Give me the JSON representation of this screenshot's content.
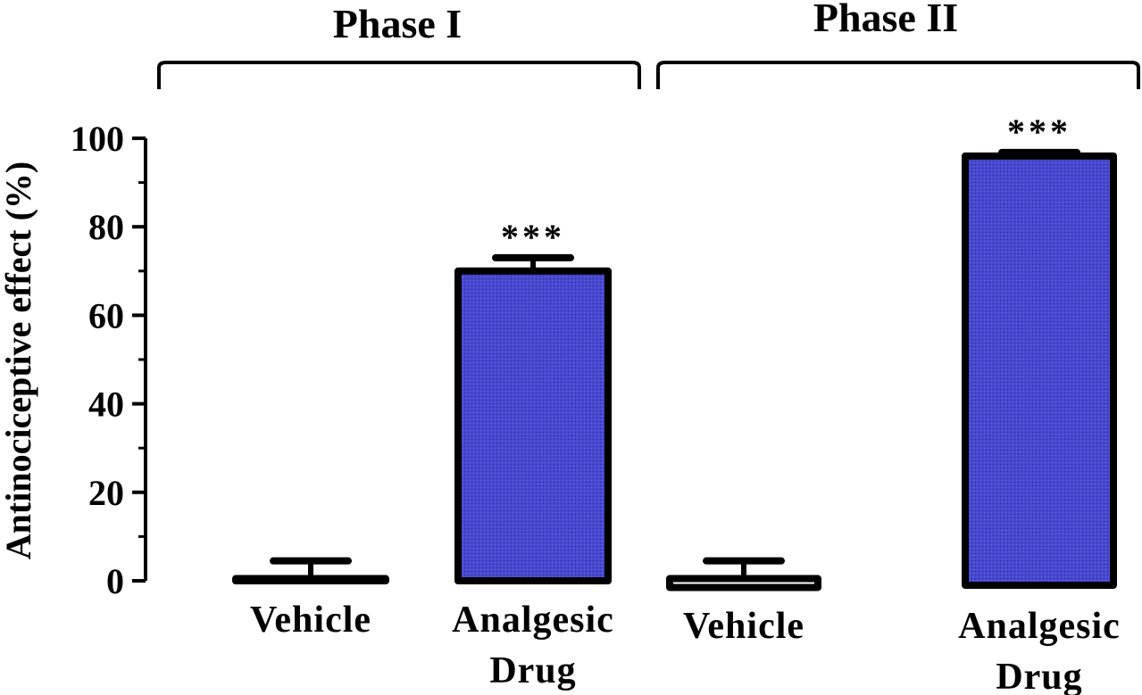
{
  "chart_data": {
    "type": "bar",
    "ylabel": "Antinociceptive effect (%)",
    "ylim": [
      0,
      100
    ],
    "yticks": [
      "0",
      "20",
      "40",
      "60",
      "80",
      "100"
    ],
    "grid": false,
    "legend": "none",
    "colors": {
      "drug": "#4848d0",
      "vehicle": "#ffffff",
      "outline": "#000000"
    },
    "groups": [
      {
        "name": "Phase I",
        "bars": [
          {
            "category": "Vehicle",
            "value": 0.5,
            "error": 4.0,
            "significance": ""
          },
          {
            "category": "Analgesic Drug",
            "value": 70.0,
            "error": 3.0,
            "significance": "***"
          }
        ]
      },
      {
        "name": "Phase II",
        "bars": [
          {
            "category": "Vehicle",
            "value": 0.5,
            "error": 4.0,
            "baseline": -1.5,
            "significance": ""
          },
          {
            "category": "Analgesic Drug",
            "value": 96.0,
            "error": 0.8,
            "baseline": -1.0,
            "significance": "***"
          }
        ]
      }
    ]
  }
}
